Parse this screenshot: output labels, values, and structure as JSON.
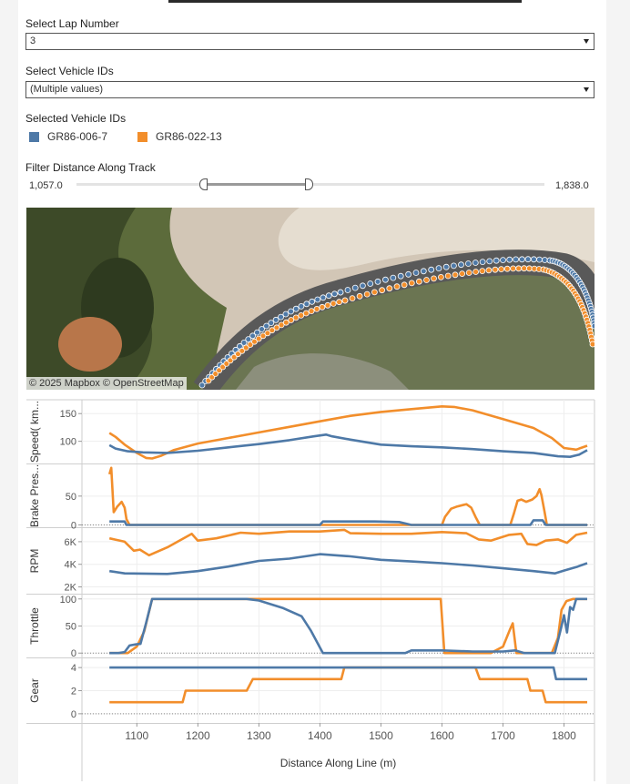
{
  "lap": {
    "label": "Select Lap Number",
    "value": "3"
  },
  "vehicles": {
    "label": "Select Vehicle IDs",
    "value": "(Multiple values)"
  },
  "legend": {
    "title": "Selected Vehicle IDs",
    "items": [
      {
        "name": "GR86-006-7",
        "color": "#4e79a7"
      },
      {
        "name": "GR86-022-13",
        "color": "#f28e2b"
      }
    ]
  },
  "distance_filter": {
    "label": "Filter Distance Along Track",
    "min": "1,057.0",
    "max": "1,838.0",
    "handle_low_fraction": 0.273,
    "handle_high_fraction": 0.497
  },
  "map": {
    "credit": "© 2025 Mapbox  © OpenStreetMap"
  },
  "chart_data": {
    "type": "line",
    "x_axis": {
      "label": "Distance Along Line (m)",
      "range": [
        1010,
        1850
      ],
      "ticks": [
        1100,
        1200,
        1300,
        1400,
        1500,
        1600,
        1700,
        1800
      ]
    },
    "colors": {
      "blue": "#4e79a7",
      "orange": "#f28e2b"
    },
    "panels": [
      {
        "ylabel": "Speed( km...",
        "range": [
          60,
          175
        ],
        "ticks": [
          {
            "v": 100,
            "t": "100"
          },
          {
            "v": 150,
            "t": "150"
          }
        ],
        "series": [
          {
            "color": "#4e79a7",
            "points": [
              [
                1055,
                93
              ],
              [
                1065,
                87
              ],
              [
                1085,
                82
              ],
              [
                1110,
                80
              ],
              [
                1150,
                79
              ],
              [
                1200,
                83
              ],
              [
                1250,
                89
              ],
              [
                1300,
                95
              ],
              [
                1350,
                102
              ],
              [
                1390,
                109
              ],
              [
                1410,
                112
              ],
              [
                1420,
                109
              ],
              [
                1450,
                103
              ],
              [
                1500,
                94
              ],
              [
                1550,
                91
              ],
              [
                1600,
                89
              ],
              [
                1650,
                86
              ],
              [
                1700,
                82
              ],
              [
                1750,
                79
              ],
              [
                1790,
                73
              ],
              [
                1810,
                72
              ],
              [
                1825,
                76
              ],
              [
                1838,
                84
              ]
            ]
          },
          {
            "color": "#f28e2b",
            "points": [
              [
                1055,
                115
              ],
              [
                1065,
                108
              ],
              [
                1080,
                94
              ],
              [
                1100,
                79
              ],
              [
                1115,
                70
              ],
              [
                1125,
                69
              ],
              [
                1140,
                74
              ],
              [
                1160,
                84
              ],
              [
                1200,
                96
              ],
              [
                1250,
                106
              ],
              [
                1300,
                116
              ],
              [
                1350,
                126
              ],
              [
                1400,
                136
              ],
              [
                1450,
                146
              ],
              [
                1500,
                153
              ],
              [
                1550,
                158
              ],
              [
                1600,
                163
              ],
              [
                1620,
                162
              ],
              [
                1650,
                156
              ],
              [
                1700,
                140
              ],
              [
                1750,
                124
              ],
              [
                1780,
                106
              ],
              [
                1800,
                88
              ],
              [
                1820,
                85
              ],
              [
                1838,
                92
              ]
            ]
          }
        ]
      },
      {
        "ylabel": "Brake Pres...",
        "range": [
          -4,
          105
        ],
        "ticks": [
          {
            "v": 0,
            "t": "0"
          },
          {
            "v": 50,
            "t": "50"
          }
        ],
        "series": [
          {
            "color": "#4e79a7",
            "points": [
              [
                1055,
                6
              ],
              [
                1080,
                6
              ],
              [
                1083,
                0
              ],
              [
                1400,
                0
              ],
              [
                1405,
                6
              ],
              [
                1440,
                6
              ],
              [
                1490,
                6
              ],
              [
                1530,
                5
              ],
              [
                1550,
                0
              ],
              [
                1745,
                0
              ],
              [
                1750,
                8
              ],
              [
                1765,
                8
              ],
              [
                1770,
                0
              ],
              [
                1838,
                0
              ]
            ]
          },
          {
            "color": "#f28e2b",
            "points": [
              [
                1055,
                88
              ],
              [
                1058,
                99
              ],
              [
                1062,
                22
              ],
              [
                1068,
                32
              ],
              [
                1075,
                40
              ],
              [
                1080,
                30
              ],
              [
                1083,
                10
              ],
              [
                1088,
                0
              ],
              [
                1600,
                0
              ],
              [
                1605,
                14
              ],
              [
                1615,
                28
              ],
              [
                1625,
                32
              ],
              [
                1640,
                36
              ],
              [
                1648,
                30
              ],
              [
                1655,
                14
              ],
              [
                1662,
                0
              ],
              [
                1712,
                0
              ],
              [
                1718,
                20
              ],
              [
                1724,
                42
              ],
              [
                1730,
                44
              ],
              [
                1738,
                40
              ],
              [
                1748,
                44
              ],
              [
                1755,
                50
              ],
              [
                1760,
                62
              ],
              [
                1763,
                52
              ],
              [
                1768,
                24
              ],
              [
                1772,
                0
              ],
              [
                1838,
                0
              ]
            ]
          }
        ]
      },
      {
        "ylabel": "RPM",
        "range": [
          1400,
          7200
        ],
        "ticks": [
          {
            "v": 2000,
            "t": "2K"
          },
          {
            "v": 4000,
            "t": "4K"
          },
          {
            "v": 6000,
            "t": "6K"
          }
        ],
        "series": [
          {
            "color": "#4e79a7",
            "points": [
              [
                1055,
                3400
              ],
              [
                1080,
                3200
              ],
              [
                1150,
                3150
              ],
              [
                1200,
                3400
              ],
              [
                1250,
                3800
              ],
              [
                1300,
                4300
              ],
              [
                1350,
                4500
              ],
              [
                1400,
                4900
              ],
              [
                1450,
                4700
              ],
              [
                1500,
                4400
              ],
              [
                1550,
                4250
              ],
              [
                1600,
                4100
              ],
              [
                1650,
                3900
              ],
              [
                1700,
                3650
              ],
              [
                1750,
                3400
              ],
              [
                1785,
                3200
              ],
              [
                1800,
                3450
              ],
              [
                1820,
                3750
              ],
              [
                1838,
                4100
              ]
            ]
          },
          {
            "color": "#f28e2b",
            "points": [
              [
                1055,
                6300
              ],
              [
                1080,
                6000
              ],
              [
                1095,
                5200
              ],
              [
                1105,
                5300
              ],
              [
                1120,
                4800
              ],
              [
                1150,
                5500
              ],
              [
                1190,
                6700
              ],
              [
                1200,
                6100
              ],
              [
                1230,
                6300
              ],
              [
                1270,
                6800
              ],
              [
                1300,
                6700
              ],
              [
                1350,
                6900
              ],
              [
                1400,
                6900
              ],
              [
                1440,
                7050
              ],
              [
                1450,
                6750
              ],
              [
                1500,
                6700
              ],
              [
                1550,
                6700
              ],
              [
                1600,
                6850
              ],
              [
                1640,
                6750
              ],
              [
                1660,
                6200
              ],
              [
                1680,
                6100
              ],
              [
                1710,
                6600
              ],
              [
                1730,
                6700
              ],
              [
                1740,
                5800
              ],
              [
                1755,
                5700
              ],
              [
                1770,
                6100
              ],
              [
                1790,
                6200
              ],
              [
                1805,
                5900
              ],
              [
                1820,
                6600
              ],
              [
                1838,
                6800
              ]
            ]
          }
        ]
      },
      {
        "ylabel": "Throttle",
        "range": [
          -8,
          108
        ],
        "ticks": [
          {
            "v": 0,
            "t": "0"
          },
          {
            "v": 50,
            "t": "50"
          },
          {
            "v": 100,
            "t": "100"
          }
        ],
        "series": [
          {
            "color": "#4e79a7",
            "points": [
              [
                1055,
                0
              ],
              [
                1070,
                0
              ],
              [
                1080,
                2
              ],
              [
                1088,
                14
              ],
              [
                1098,
                16
              ],
              [
                1106,
                17
              ],
              [
                1115,
                55
              ],
              [
                1125,
                100
              ],
              [
                1280,
                100
              ],
              [
                1300,
                97
              ],
              [
                1340,
                83
              ],
              [
                1370,
                68
              ],
              [
                1385,
                42
              ],
              [
                1405,
                0
              ],
              [
                1540,
                0
              ],
              [
                1550,
                5
              ],
              [
                1600,
                5
              ],
              [
                1650,
                3
              ],
              [
                1700,
                3
              ],
              [
                1720,
                5
              ],
              [
                1735,
                0
              ],
              [
                1785,
                0
              ],
              [
                1795,
                45
              ],
              [
                1800,
                70
              ],
              [
                1805,
                38
              ],
              [
                1810,
                85
              ],
              [
                1815,
                80
              ],
              [
                1820,
                100
              ],
              [
                1838,
                100
              ]
            ]
          },
          {
            "color": "#f28e2b",
            "points": [
              [
                1055,
                0
              ],
              [
                1085,
                0
              ],
              [
                1100,
                12
              ],
              [
                1112,
                40
              ],
              [
                1125,
                100
              ],
              [
                1598,
                100
              ],
              [
                1604,
                0
              ],
              [
                1680,
                0
              ],
              [
                1700,
                12
              ],
              [
                1712,
                45
              ],
              [
                1716,
                55
              ],
              [
                1722,
                0
              ],
              [
                1780,
                0
              ],
              [
                1790,
                28
              ],
              [
                1796,
                80
              ],
              [
                1804,
                96
              ],
              [
                1815,
                100
              ],
              [
                1838,
                100
              ]
            ]
          }
        ]
      },
      {
        "ylabel": "Gear",
        "range": [
          -0.8,
          4.8
        ],
        "ticks": [
          {
            "v": 0,
            "t": "0"
          },
          {
            "v": 2,
            "t": "2"
          },
          {
            "v": 4,
            "t": "4"
          }
        ],
        "series": [
          {
            "color": "#4e79a7",
            "points": [
              [
                1055,
                4
              ],
              [
                1783,
                4
              ],
              [
                1787,
                3
              ],
              [
                1838,
                3
              ]
            ]
          },
          {
            "color": "#f28e2b",
            "points": [
              [
                1055,
                1
              ],
              [
                1175,
                1
              ],
              [
                1180,
                2
              ],
              [
                1280,
                2
              ],
              [
                1290,
                3
              ],
              [
                1435,
                3
              ],
              [
                1440,
                4
              ],
              [
                1655,
                4
              ],
              [
                1662,
                3
              ],
              [
                1740,
                3
              ],
              [
                1745,
                2
              ],
              [
                1765,
                2
              ],
              [
                1770,
                1
              ],
              [
                1838,
                1
              ]
            ]
          }
        ]
      }
    ]
  }
}
